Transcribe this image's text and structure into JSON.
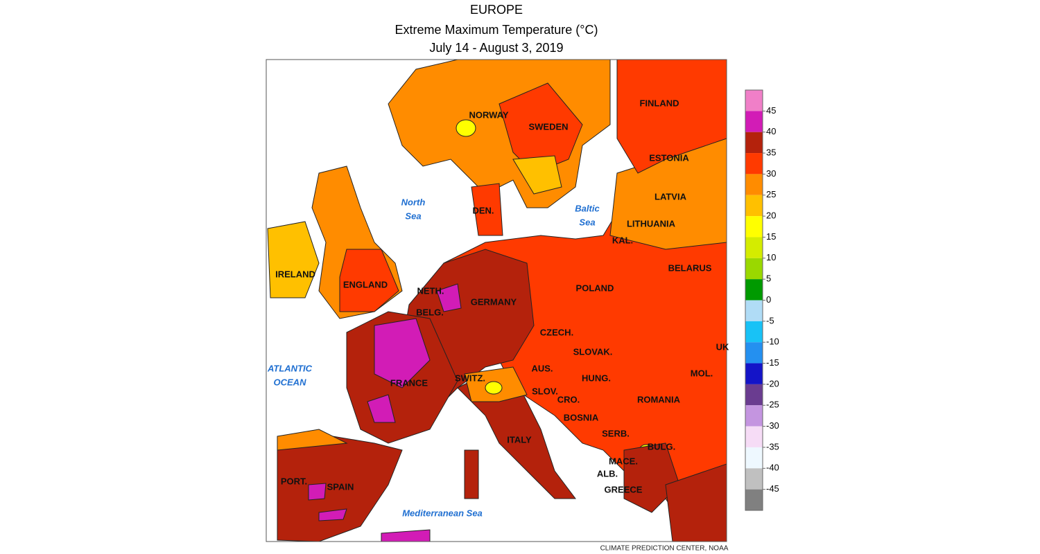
{
  "header": {
    "title": "EUROPE",
    "subtitle": "Extreme Maximum Temperature (°C)",
    "period": "July 14 - August 3, 2019"
  },
  "map": {
    "countries": [
      "NORWAY",
      "SWEDEN",
      "FINLAND",
      "ESTONIA",
      "LATVIA",
      "LITHUANIA",
      "KAL.",
      "BELARUS",
      "DEN.",
      "IRELAND",
      "ENGLAND",
      "NETH.",
      "BELG.",
      "GERMANY",
      "POLAND",
      "CZECH.",
      "SLOVAK.",
      "UK",
      "AUS.",
      "SWITZ.",
      "HUNG.",
      "MOL.",
      "FRANCE",
      "SLOV.",
      "CRO.",
      "ROMANIA",
      "BOSNIA",
      "SERB.",
      "BULG.",
      "ITALY",
      "MACE.",
      "ALB.",
      "PORT.",
      "SPAIN",
      "GREECE"
    ],
    "seas": [
      {
        "lines": [
          "North",
          "Sea"
        ]
      },
      {
        "lines": [
          "Baltic",
          "Sea"
        ]
      },
      {
        "lines": [
          "ATLANTIC",
          "OCEAN"
        ]
      },
      {
        "lines": [
          "Mediterranean Sea"
        ]
      }
    ]
  },
  "legend": {
    "colors": [
      "#f07fc8",
      "#d21cb6",
      "#b4220c",
      "#ff3a00",
      "#ff8c00",
      "#ffc000",
      "#ffff00",
      "#d4ec00",
      "#9ad800",
      "#009a00",
      "#b0dcf6",
      "#18c2f6",
      "#2490f0",
      "#1414c8",
      "#6a3c90",
      "#c495e0",
      "#f6dcf6",
      "#eef8ff",
      "#c0c0c0",
      "#808080"
    ],
    "ticks": [
      45,
      40,
      35,
      30,
      25,
      20,
      15,
      10,
      5,
      0,
      -5,
      -10,
      -15,
      -20,
      -25,
      -30,
      -35,
      -40,
      -45
    ]
  },
  "footer": {
    "credit": "CLIMATE PREDICTION CENTER, NOAA"
  }
}
